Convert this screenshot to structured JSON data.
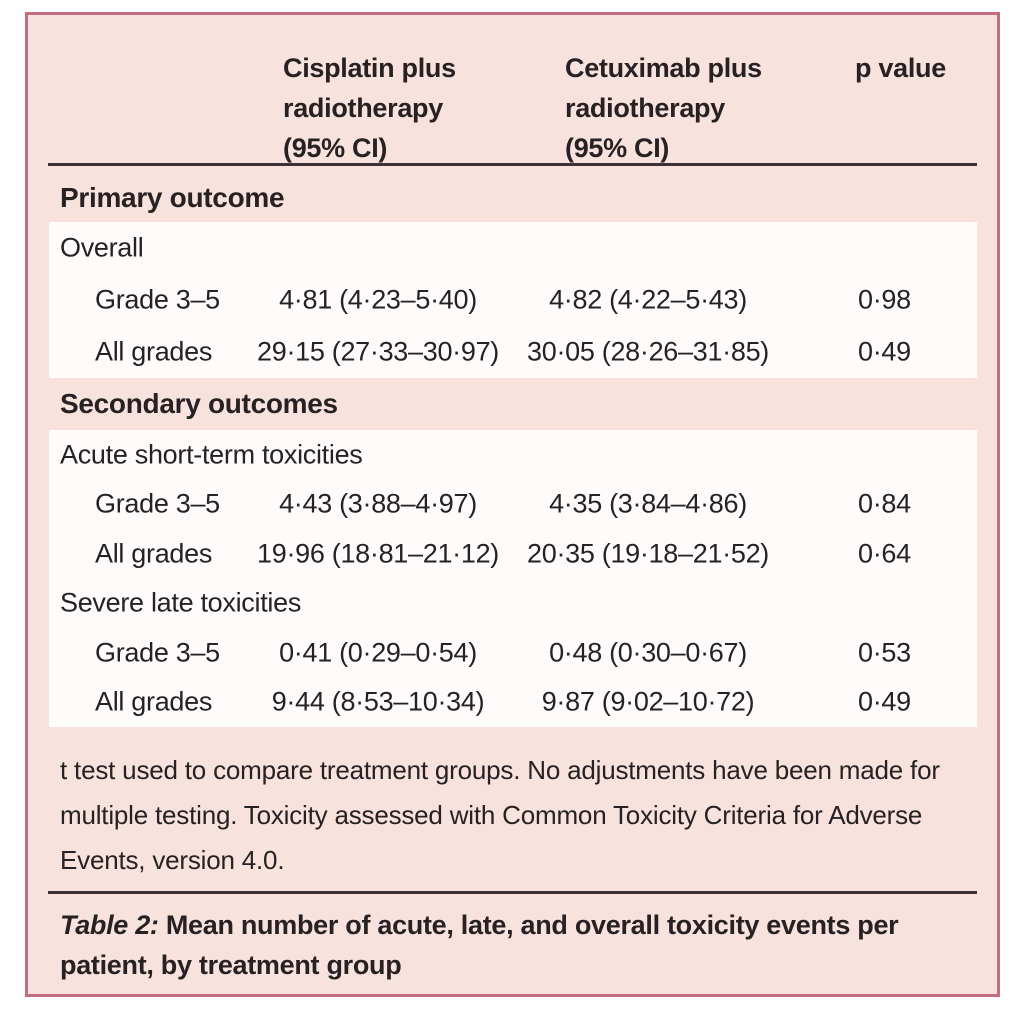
{
  "document": {
    "type": "journal-table",
    "source_style": "clinical-paper"
  },
  "colors": {
    "card_background": "#f8e2de",
    "card_border": "#c46d80",
    "row_block_background": "#fdfcfb",
    "rule": "#3d3134",
    "text": "#272123"
  },
  "header": {
    "col1_lines": [
      "Cisplatin plus",
      "radiotherapy",
      "(95% CI)"
    ],
    "col2_lines": [
      "Cetuximab plus",
      "radiotherapy",
      "(95% CI)"
    ],
    "col3": "p value"
  },
  "sections": [
    {
      "title": "Primary outcome",
      "groups": [
        {
          "label": "Overall",
          "rows": [
            {
              "label": "Grade 3–5",
              "cisplatin": "4·81 (4·23–5·40)",
              "cetuximab": "4·82 (4·22–5·43)",
              "p": "0·98"
            },
            {
              "label": "All grades",
              "cisplatin": "29·15 (27·33–30·97)",
              "cetuximab": "30·05 (28·26–31·85)",
              "p": "0·49"
            }
          ]
        }
      ]
    },
    {
      "title": "Secondary outcomes",
      "groups": [
        {
          "label": "Acute short-term toxicities",
          "rows": [
            {
              "label": "Grade 3–5",
              "cisplatin": "4·43 (3·88–4·97)",
              "cetuximab": "4·35 (3·84–4·86)",
              "p": "0·84"
            },
            {
              "label": "All grades",
              "cisplatin": "19·96 (18·81–21·12)",
              "cetuximab": "20·35 (19·18–21·52)",
              "p": "0·64"
            }
          ]
        },
        {
          "label": "Severe late toxicities",
          "rows": [
            {
              "label": "Grade 3–5",
              "cisplatin": "0·41 (0·29–0·54)",
              "cetuximab": "0·48 (0·30–0·67)",
              "p": "0·53"
            },
            {
              "label": "All grades",
              "cisplatin": "9·44 (8·53–10·34)",
              "cetuximab": "9·87 (9·02–10·72)",
              "p": "0·49"
            }
          ]
        }
      ]
    }
  ],
  "footnote_lines": [
    "t test used to compare treatment groups. No adjustments have been made for",
    "multiple testing. Toxicity assessed with Common Toxicity Criteria for Adverse",
    "Events, version 4.0."
  ],
  "caption": {
    "label": "Table 2:",
    "line1_rest": " Mean number of acute, late, and overall toxicity events per",
    "line2": "patient, by treatment group"
  }
}
